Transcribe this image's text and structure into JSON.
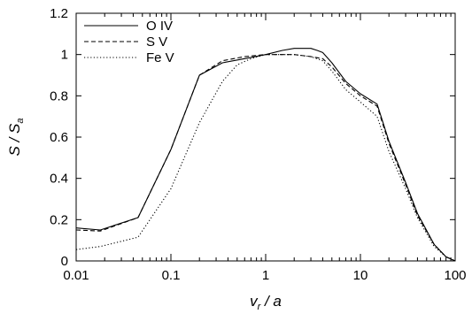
{
  "chart_data": {
    "type": "line",
    "xscale": "log",
    "xlim": [
      0.01,
      100
    ],
    "ylim": [
      0,
      1.2
    ],
    "x_ticks": [
      "0.01",
      "0.1",
      "1",
      "10",
      "100"
    ],
    "y_ticks": [
      "0",
      "0.2",
      "0.4",
      "0.6",
      "0.8",
      "1",
      "1.2"
    ],
    "xlabel": {
      "main": "v",
      "sub": "r",
      "rest": " / a"
    },
    "ylabel": {
      "main": "S / S",
      "sub": "a"
    },
    "grid": false,
    "legend_position": "top-left",
    "series": [
      {
        "name": "O IV",
        "dash": "solid",
        "x": [
          0.01,
          0.018,
          0.045,
          0.1,
          0.2,
          0.35,
          0.6,
          1,
          1.5,
          2,
          2.5,
          3,
          3.5,
          4,
          5,
          7,
          10,
          15,
          20,
          30,
          40,
          60,
          80,
          100
        ],
        "y": [
          0.16,
          0.15,
          0.21,
          0.54,
          0.9,
          0.96,
          0.98,
          1.0,
          1.02,
          1.03,
          1.03,
          1.03,
          1.02,
          1.01,
          0.96,
          0.87,
          0.81,
          0.76,
          0.58,
          0.38,
          0.23,
          0.08,
          0.02,
          0.0
        ]
      },
      {
        "name": "S V",
        "dash": "dashed",
        "x": [
          0.01,
          0.018,
          0.045,
          0.1,
          0.2,
          0.35,
          0.6,
          1,
          1.5,
          2,
          3,
          4,
          5,
          7,
          10,
          15,
          20,
          30,
          40,
          60,
          80,
          100
        ],
        "y": [
          0.15,
          0.145,
          0.21,
          0.54,
          0.9,
          0.97,
          0.99,
          1.0,
          1.0,
          1.0,
          0.99,
          0.98,
          0.94,
          0.86,
          0.8,
          0.75,
          0.57,
          0.37,
          0.22,
          0.08,
          0.02,
          0.0
        ]
      },
      {
        "name": "Fe V",
        "dash": "dotted",
        "x": [
          0.01,
          0.018,
          0.045,
          0.1,
          0.2,
          0.35,
          0.5,
          0.7,
          1,
          1.5,
          2,
          3,
          4,
          5,
          7,
          10,
          15,
          20,
          30,
          40,
          60,
          80,
          100
        ],
        "y": [
          0.055,
          0.07,
          0.115,
          0.35,
          0.67,
          0.87,
          0.95,
          0.98,
          1.0,
          1.0,
          1.0,
          0.99,
          0.97,
          0.92,
          0.83,
          0.77,
          0.7,
          0.53,
          0.35,
          0.21,
          0.07,
          0.02,
          0.0
        ]
      }
    ]
  }
}
